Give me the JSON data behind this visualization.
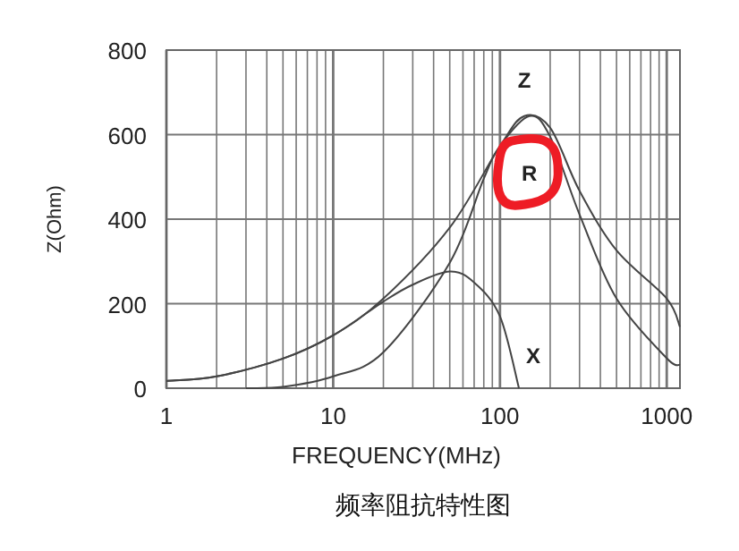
{
  "chart_data": {
    "type": "line",
    "xlabel": "FREQUENCY(MHz)",
    "ylabel": "Z(Ohm)",
    "log": "x",
    "xlim": [
      1,
      1200
    ],
    "ylim": [
      0,
      800
    ],
    "xticks": [
      1,
      {
        "value": 2,
        "label": null
      },
      {
        "value": 3,
        "label": null
      },
      {
        "value": 4,
        "label": null
      },
      {
        "value": 5,
        "label": null
      },
      {
        "value": 6,
        "label": null
      },
      {
        "value": 7,
        "label": null
      },
      {
        "value": 8,
        "label": null
      },
      {
        "value": 9,
        "label": null
      },
      10,
      {
        "value": 20,
        "label": null
      },
      {
        "value": 30,
        "label": null
      },
      {
        "value": 40,
        "label": null
      },
      {
        "value": 50,
        "label": null
      },
      {
        "value": 60,
        "label": null
      },
      {
        "value": 70,
        "label": null
      },
      {
        "value": 80,
        "label": null
      },
      {
        "value": 90,
        "label": null
      },
      100,
      {
        "value": 200,
        "label": null
      },
      {
        "value": 300,
        "label": null
      },
      {
        "value": 400,
        "label": null
      },
      {
        "value": 500,
        "label": null
      },
      {
        "value": 600,
        "label": null
      },
      {
        "value": 700,
        "label": null
      },
      {
        "value": 800,
        "label": null
      },
      {
        "value": 900,
        "label": null
      },
      1000
    ],
    "yticks": [
      0,
      200,
      400,
      600,
      800
    ],
    "grid": true,
    "marker": "none",
    "line_style": "solid",
    "series": [
      {
        "name": "Z",
        "color": "#444444",
        "x": [
          1,
          2,
          5,
          10,
          20,
          50,
          100,
          140,
          200,
          300,
          500,
          1000,
          1200
        ],
        "values": [
          17,
          28,
          70,
          125,
          212,
          380,
          573,
          644,
          616,
          467,
          326,
          212,
          145
        ]
      },
      {
        "name": "R",
        "color": "#444444",
        "x": [
          3,
          5,
          10,
          20,
          50,
          80,
          100,
          150,
          200,
          300,
          500,
          1000,
          1200
        ],
        "values": [
          0,
          3,
          28,
          85,
          297,
          496,
          573,
          644,
          595,
          411,
          212,
          71,
          55
        ]
      },
      {
        "name": "X",
        "color": "#444444",
        "x": [
          1,
          2,
          5,
          10,
          20,
          30,
          50,
          70,
          100,
          130
        ],
        "values": [
          17,
          28,
          70,
          125,
          205,
          245,
          276,
          250,
          170,
          0
        ]
      }
    ],
    "annotations": [
      "频率阻抗特性图"
    ]
  }
}
